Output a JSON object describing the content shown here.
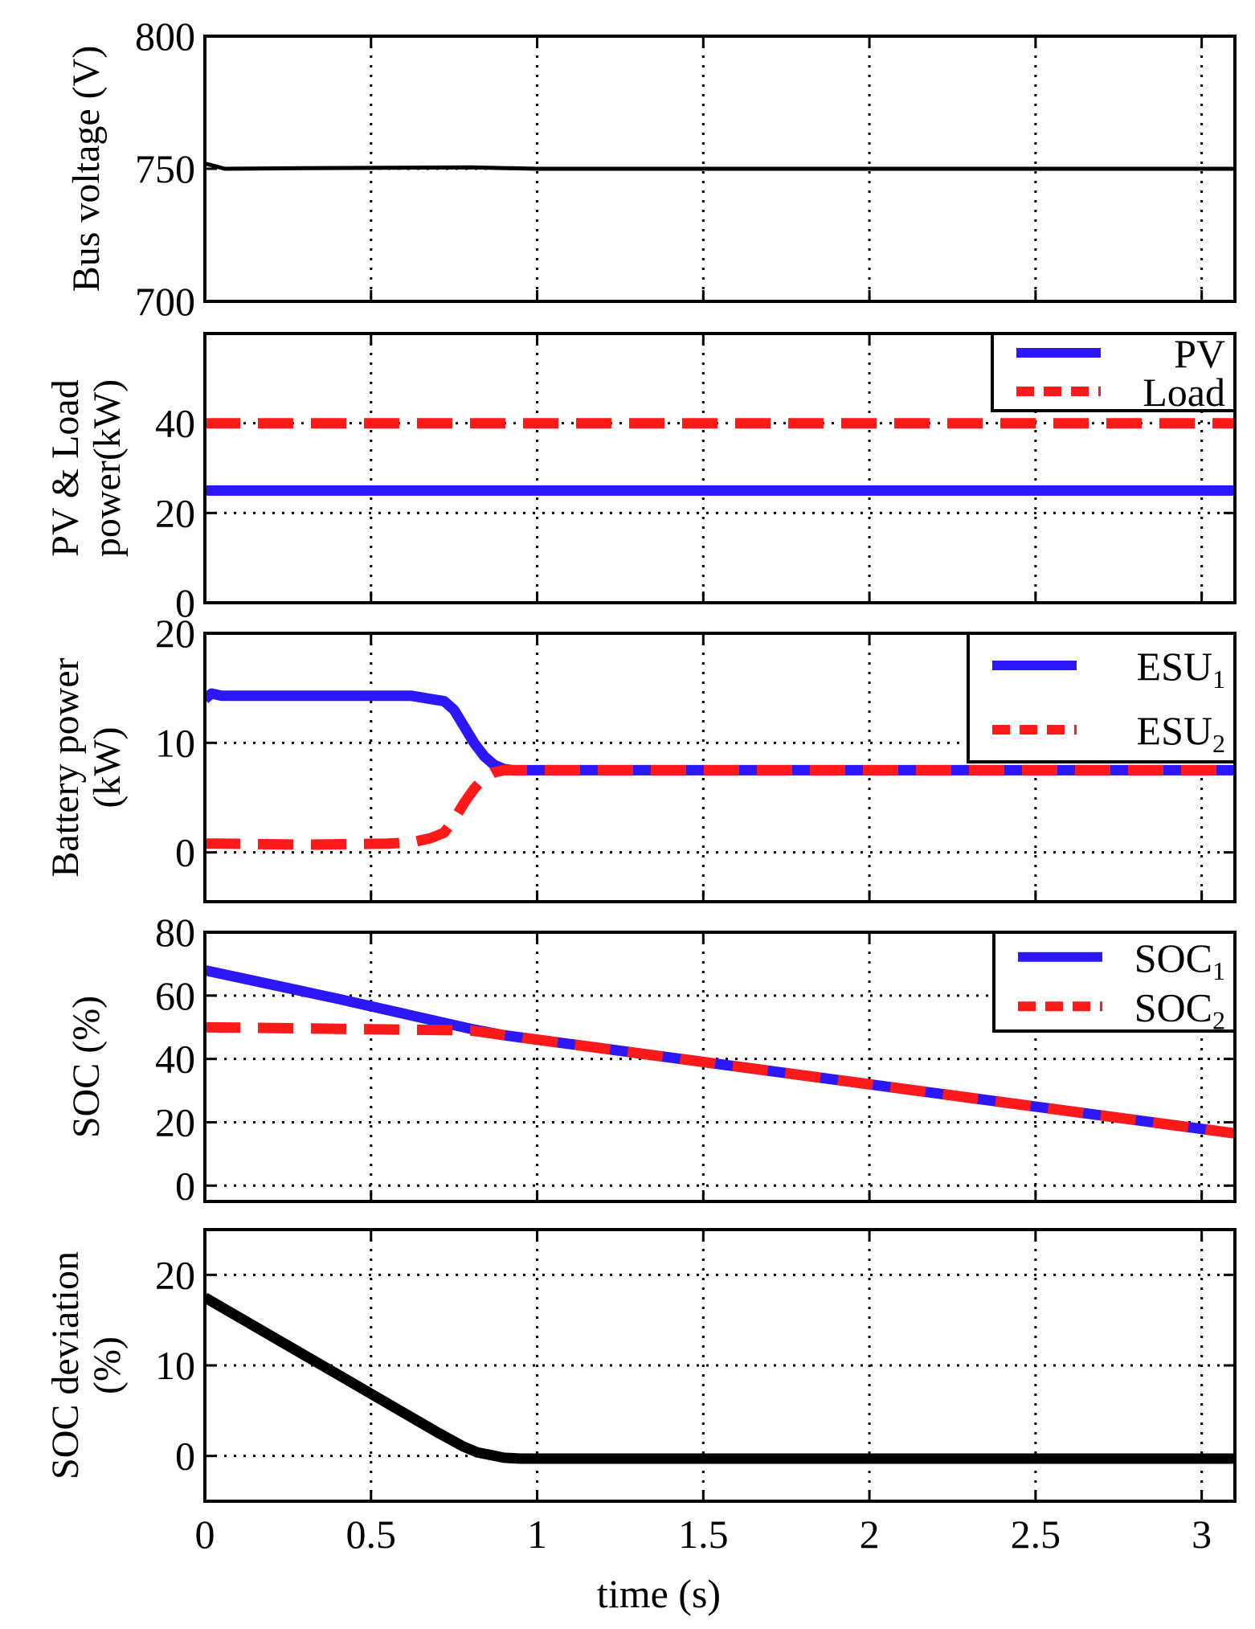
{
  "figure": {
    "xlabel": "time (s)",
    "x_ticks": [
      0,
      0.5,
      1,
      1.5,
      2,
      2.5,
      3
    ],
    "x_tick_labels": [
      "0",
      "0.5",
      "1",
      "1.5",
      "2",
      "2.5",
      "3"
    ],
    "xlim": [
      0,
      3.1
    ]
  },
  "colors": {
    "blue": "#2b17f7",
    "red": "#ff1a1a",
    "black": "#000000"
  },
  "chart_data": [
    {
      "type": "line",
      "ylabel_lines": [
        "Bus voltage (V)"
      ],
      "ylim": [
        700,
        800
      ],
      "y_ticks": [
        700,
        750,
        800
      ],
      "y_tick_labels": [
        "700",
        "750",
        "800"
      ],
      "grid": true,
      "legend": null,
      "series": [
        {
          "name": "Bus voltage",
          "color": "black",
          "style": "solid",
          "width": 5,
          "x": [
            0,
            0.03,
            0.06,
            0.3,
            0.8,
            1.0,
            3.1
          ],
          "y": [
            752,
            751,
            750,
            750.2,
            750.5,
            750,
            750
          ]
        }
      ]
    },
    {
      "type": "line",
      "ylabel_lines": [
        "PV & Load",
        "power(kW)"
      ],
      "ylim": [
        0,
        60
      ],
      "y_ticks": [
        0,
        20,
        40
      ],
      "y_tick_labels": [
        "0",
        "20",
        "40"
      ],
      "grid": true,
      "legend": {
        "position": "top-right",
        "entries": [
          {
            "label": "PV",
            "sub": "",
            "color": "blue",
            "style": "solid"
          },
          {
            "label": "Load",
            "sub": "",
            "color": "red",
            "style": "dashed"
          }
        ]
      },
      "series": [
        {
          "name": "PV",
          "color": "blue",
          "style": "solid",
          "width": 13,
          "x": [
            0,
            3.1
          ],
          "y": [
            25,
            25
          ]
        },
        {
          "name": "Load",
          "color": "red",
          "style": "dashed",
          "width": 13,
          "x": [
            0,
            3.1
          ],
          "y": [
            40,
            40
          ]
        }
      ]
    },
    {
      "type": "line",
      "ylabel_lines": [
        "Battery power",
        "(kW)"
      ],
      "ylim": [
        -4.5,
        20
      ],
      "y_ticks": [
        0,
        10,
        20
      ],
      "y_tick_labels": [
        "0",
        "10",
        "20"
      ],
      "grid": true,
      "legend": {
        "position": "top-right",
        "entries": [
          {
            "label": "ESU",
            "sub": "1",
            "color": "blue",
            "style": "solid"
          },
          {
            "label": "ESU",
            "sub": "2",
            "color": "red",
            "style": "dashed"
          }
        ]
      },
      "series": [
        {
          "name": "ESU1",
          "color": "blue",
          "style": "solid",
          "width": 13,
          "x": [
            0,
            0.02,
            0.05,
            0.3,
            0.55,
            0.62,
            0.68,
            0.72,
            0.75,
            0.78,
            0.81,
            0.84,
            0.87,
            0.9,
            0.93,
            1.0,
            3.1
          ],
          "y": [
            14.0,
            14.5,
            14.3,
            14.3,
            14.3,
            14.3,
            14.0,
            13.8,
            13.0,
            11.5,
            10.0,
            8.8,
            8.0,
            7.6,
            7.5,
            7.5,
            7.5
          ]
        },
        {
          "name": "ESU2",
          "color": "red",
          "style": "dashed",
          "width": 13,
          "x": [
            0,
            0.05,
            0.3,
            0.55,
            0.62,
            0.68,
            0.72,
            0.75,
            0.78,
            0.81,
            0.84,
            0.87,
            0.9,
            0.93,
            1.0,
            3.1
          ],
          "y": [
            0.8,
            0.8,
            0.7,
            0.8,
            0.9,
            1.3,
            1.8,
            3.0,
            4.5,
            5.8,
            6.8,
            7.3,
            7.5,
            7.5,
            7.5,
            7.5
          ]
        }
      ]
    },
    {
      "type": "line",
      "ylabel_lines": [
        "SOC (%)"
      ],
      "ylim": [
        -5,
        80
      ],
      "y_ticks": [
        0,
        20,
        40,
        60,
        80
      ],
      "y_tick_labels": [
        "0",
        "20",
        "40",
        "60",
        "80"
      ],
      "grid": true,
      "legend": {
        "position": "top-right",
        "entries": [
          {
            "label": "SOC",
            "sub": "1",
            "color": "blue",
            "style": "solid"
          },
          {
            "label": "SOC",
            "sub": "2",
            "color": "red",
            "style": "dashed"
          }
        ]
      },
      "series": [
        {
          "name": "SOC1",
          "color": "blue",
          "style": "solid",
          "width": 13,
          "x": [
            0,
            0.4,
            0.8,
            0.9,
            3.1
          ],
          "y": [
            68,
            59,
            49.5,
            47.5,
            16.5
          ]
        },
        {
          "name": "SOC2",
          "color": "red",
          "style": "dashed",
          "width": 13,
          "x": [
            0,
            0.8,
            0.9,
            3.1
          ],
          "y": [
            50,
            49,
            47.5,
            16.5
          ]
        }
      ]
    },
    {
      "type": "line",
      "ylabel_lines": [
        "SOC deviation",
        "(%)"
      ],
      "ylim": [
        -5,
        25
      ],
      "y_ticks": [
        0,
        10,
        20
      ],
      "y_tick_labels": [
        "0",
        "10",
        "20"
      ],
      "grid": true,
      "legend": null,
      "series": [
        {
          "name": "SOC deviation",
          "color": "black",
          "style": "solid",
          "width": 13,
          "x": [
            0,
            0.4,
            0.7,
            0.78,
            0.82,
            0.86,
            0.9,
            0.95,
            3.1
          ],
          "y": [
            17.5,
            9.0,
            2.6,
            1.0,
            0.4,
            0.1,
            -0.2,
            -0.3,
            -0.3
          ]
        }
      ]
    }
  ]
}
